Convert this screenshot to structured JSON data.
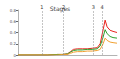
{
  "chart_data": {
    "type": "line",
    "title": "Stages",
    "x": [
      0,
      10,
      20,
      30,
      40,
      45,
      50,
      53,
      56,
      60,
      65,
      70,
      75,
      80,
      83,
      86,
      88,
      90,
      93,
      96,
      100
    ],
    "series": [
      {
        "color": "#e8231f",
        "values": [
          0,
          0,
          0,
          0,
          0.01,
          0.01,
          0.02,
          0.06,
          0.1,
          0.11,
          0.11,
          0.11,
          0.12,
          0.13,
          0.2,
          0.45,
          0.62,
          0.5,
          0.44,
          0.42,
          0.4
        ]
      },
      {
        "color": "#2ca02c",
        "values": [
          0,
          0,
          0,
          0,
          0.01,
          0.01,
          0.02,
          0.05,
          0.08,
          0.09,
          0.09,
          0.1,
          0.1,
          0.11,
          0.16,
          0.32,
          0.45,
          0.38,
          0.33,
          0.31,
          0.3
        ]
      },
      {
        "color": "#f0a030",
        "values": [
          0,
          0,
          0,
          0,
          0,
          0.01,
          0.01,
          0.03,
          0.05,
          0.06,
          0.06,
          0.07,
          0.07,
          0.08,
          0.1,
          0.2,
          0.3,
          0.26,
          0.23,
          0.22,
          0.21
        ]
      }
    ],
    "annotations": [
      {
        "x": 24,
        "text": "1"
      },
      {
        "x": 46,
        "text": "2"
      },
      {
        "x": 76,
        "text": "3"
      },
      {
        "x": 85,
        "text": "4"
      }
    ],
    "xlim": [
      0,
      100
    ],
    "ylim": [
      0,
      0.8
    ],
    "yticks": [
      0,
      0.2,
      0.4,
      0.6,
      0.8
    ],
    "grid": false,
    "tick_labels": "y"
  }
}
